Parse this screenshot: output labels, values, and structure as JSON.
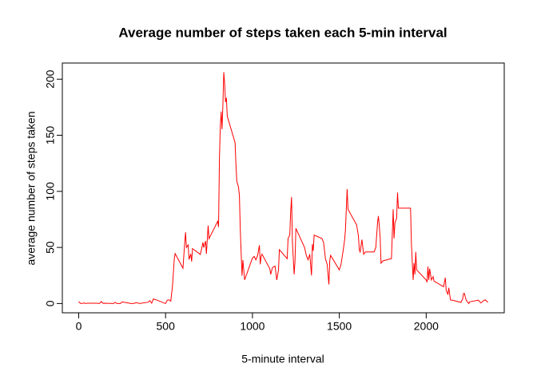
{
  "chart_data": {
    "type": "line",
    "title": "Average number of steps taken each 5-min interval",
    "x_label": "5-minute interval",
    "y_label": "average number of steps taken",
    "x": [
      0,
      10,
      20,
      30,
      40,
      50,
      100,
      110,
      120,
      130,
      140,
      150,
      200,
      210,
      220,
      230,
      240,
      250,
      300,
      310,
      320,
      330,
      340,
      350,
      400,
      410,
      420,
      430,
      440,
      450,
      500,
      510,
      520,
      530,
      540,
      550,
      555,
      600,
      610,
      615,
      620,
      630,
      635,
      645,
      650,
      655,
      700,
      710,
      715,
      720,
      730,
      735,
      745,
      750,
      800,
      805,
      810,
      815,
      820,
      825,
      830,
      835,
      840,
      845,
      850,
      855,
      900,
      905,
      910,
      920,
      925,
      930,
      935,
      940,
      945,
      955,
      1000,
      1010,
      1020,
      1030,
      1040,
      1045,
      1050,
      1055,
      1100,
      1105,
      1115,
      1130,
      1140,
      1150,
      1155,
      1200,
      1205,
      1215,
      1220,
      1225,
      1230,
      1240,
      1245,
      1250,
      1300,
      1310,
      1320,
      1330,
      1340,
      1345,
      1350,
      1355,
      1400,
      1410,
      1420,
      1430,
      1440,
      1445,
      1450,
      1500,
      1510,
      1520,
      1530,
      1535,
      1540,
      1545,
      1550,
      1600,
      1610,
      1615,
      1620,
      1630,
      1640,
      1650,
      1700,
      1710,
      1720,
      1725,
      1730,
      1735,
      1740,
      1745,
      1750,
      1800,
      1810,
      1815,
      1820,
      1830,
      1835,
      1840,
      1900,
      1910,
      1915,
      1925,
      1930,
      1935,
      1940,
      1945,
      2000,
      2005,
      2010,
      2015,
      2020,
      2030,
      2040,
      2045,
      2100,
      2110,
      2115,
      2125,
      2130,
      2140,
      2150,
      2200,
      2210,
      2215,
      2220,
      2230,
      2245,
      2250,
      2300,
      2315,
      2330,
      2340,
      2355
    ],
    "series": [
      {
        "name": "steps",
        "color": "#ff0000",
        "values": [
          1.7,
          0.1,
          0.1,
          0.5,
          0,
          0.3,
          0.3,
          0.2,
          0,
          1.8,
          0.2,
          0.3,
          0,
          1.1,
          0,
          0,
          0,
          1.5,
          0,
          0,
          0.2,
          0.8,
          0.5,
          0,
          1.2,
          2.6,
          0.3,
          4.1,
          3.5,
          3.1,
          0,
          3.0,
          3.3,
          2.1,
          16.0,
          39.5,
          44.5,
          31.5,
          53.8,
          63.5,
          50.0,
          52.2,
          39.3,
          44.2,
          37.4,
          49.0,
          43.8,
          50.5,
          54.5,
          49.9,
          55.7,
          44.3,
          69.5,
          57.8,
          73.4,
          68.2,
          129.4,
          157.5,
          171.2,
          155.4,
          177.3,
          206.2,
          195.9,
          179.6,
          183.4,
          167.0,
          143.5,
          124.0,
          109.1,
          103.7,
          96.0,
          66.2,
          45.2,
          24.8,
          38.8,
          21.1,
          40.6,
          42.0,
          38.9,
          43.0,
          52.0,
          35.0,
          42.0,
          44.0,
          31.0,
          26.0,
          32.0,
          33.4,
          21.0,
          30.0,
          48.0,
          40.0,
          58.0,
          61.0,
          82.0,
          95.0,
          55.0,
          26.0,
          38.0,
          67.0,
          50.0,
          43.0,
          39.0,
          44.0,
          25.0,
          53.0,
          47.0,
          61.0,
          58.0,
          54.0,
          40.0,
          35.0,
          17.0,
          38.0,
          43.0,
          30.0,
          35.0,
          45.0,
          56.0,
          65.0,
          83.0,
          102.0,
          84.0,
          70.0,
          60.0,
          48.0,
          46.0,
          57.0,
          44.0,
          46.0,
          46.0,
          50.0,
          72.0,
          78.0,
          69.0,
          59.0,
          36.0,
          37.0,
          38.0,
          40.0,
          84.0,
          58.0,
          72.0,
          76.0,
          99.0,
          85.0,
          85.0,
          85.0,
          53.0,
          21.0,
          36.0,
          26.0,
          46.0,
          30.0,
          21.0,
          19.0,
          33.0,
          21.0,
          31.0,
          21.0,
          24.0,
          20.0,
          15.0,
          23.0,
          12.0,
          8.0,
          14.0,
          3.0,
          3.0,
          1.0,
          4.0,
          9.0,
          9.0,
          3.0,
          0.0,
          1.5,
          3.0,
          0.5,
          2.6,
          3.3,
          1.1
        ]
      }
    ],
    "xlim": [
      -94.2,
      2449.2
    ],
    "ylim": [
      -8.25,
      214.4
    ],
    "xticks": [
      0,
      500,
      1000,
      1500,
      2000
    ],
    "yticks": [
      0,
      50,
      100,
      150,
      200
    ]
  }
}
